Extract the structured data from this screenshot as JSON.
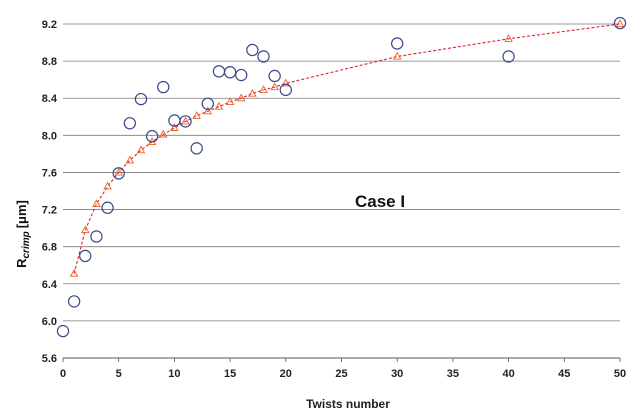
{
  "chart_data": {
    "type": "scatter",
    "title": "",
    "xlabel": "Twists number",
    "ylabel": "R",
    "ylabel_sub": "crimp",
    "ylabel_unit": "[μm]",
    "xlim": [
      0,
      50
    ],
    "ylim": [
      5.6,
      9.2
    ],
    "x_ticks": [
      0,
      5,
      10,
      15,
      20,
      25,
      30,
      35,
      40,
      45,
      50
    ],
    "y_ticks": [
      5.6,
      6.0,
      6.4,
      6.8,
      7.2,
      7.6,
      8.0,
      8.4,
      8.8,
      9.2
    ],
    "y_tick_labels": [
      "5.6",
      "6.0",
      "6.4",
      "6.8",
      "7.2",
      "7.6",
      "8.0",
      "8.4",
      "8.8",
      "9.2"
    ],
    "grid": "horizontal",
    "annotation": "Case I",
    "series": [
      {
        "marker": "circle",
        "color": "#3a4a8c",
        "points": [
          {
            "x": 0,
            "y": 5.89
          },
          {
            "x": 1,
            "y": 6.21
          },
          {
            "x": 2,
            "y": 6.7
          },
          {
            "x": 3,
            "y": 6.91
          },
          {
            "x": 4,
            "y": 7.22
          },
          {
            "x": 5,
            "y": 7.59
          },
          {
            "x": 6,
            "y": 8.13
          },
          {
            "x": 7,
            "y": 8.39
          },
          {
            "x": 8,
            "y": 7.99
          },
          {
            "x": 9,
            "y": 8.52
          },
          {
            "x": 10,
            "y": 8.16
          },
          {
            "x": 11,
            "y": 8.15
          },
          {
            "x": 12,
            "y": 7.86
          },
          {
            "x": 13,
            "y": 8.34
          },
          {
            "x": 14,
            "y": 8.69
          },
          {
            "x": 15,
            "y": 8.68
          },
          {
            "x": 16,
            "y": 8.65
          },
          {
            "x": 17,
            "y": 8.92
          },
          {
            "x": 18,
            "y": 8.85
          },
          {
            "x": 19,
            "y": 8.64
          },
          {
            "x": 20,
            "y": 8.49
          },
          {
            "x": 30,
            "y": 8.99
          },
          {
            "x": 40,
            "y": 8.85
          },
          {
            "x": 50,
            "y": 9.21
          }
        ]
      },
      {
        "marker": "triangle",
        "line": "dashed",
        "color": "#e8602c",
        "points": [
          {
            "x": 1,
            "y": 6.51
          },
          {
            "x": 2,
            "y": 6.98
          },
          {
            "x": 3,
            "y": 7.26
          },
          {
            "x": 4,
            "y": 7.45
          },
          {
            "x": 5,
            "y": 7.6
          },
          {
            "x": 6,
            "y": 7.73
          },
          {
            "x": 7,
            "y": 7.84
          },
          {
            "x": 8,
            "y": 7.93
          },
          {
            "x": 9,
            "y": 8.01
          },
          {
            "x": 10,
            "y": 8.08
          },
          {
            "x": 11,
            "y": 8.15
          },
          {
            "x": 12,
            "y": 8.21
          },
          {
            "x": 13,
            "y": 8.26
          },
          {
            "x": 14,
            "y": 8.31
          },
          {
            "x": 15,
            "y": 8.36
          },
          {
            "x": 16,
            "y": 8.4
          },
          {
            "x": 17,
            "y": 8.45
          },
          {
            "x": 18,
            "y": 8.49
          },
          {
            "x": 19,
            "y": 8.52
          },
          {
            "x": 20,
            "y": 8.56
          },
          {
            "x": 30,
            "y": 8.85
          },
          {
            "x": 40,
            "y": 9.04
          },
          {
            "x": 50,
            "y": 9.2
          }
        ]
      }
    ]
  }
}
